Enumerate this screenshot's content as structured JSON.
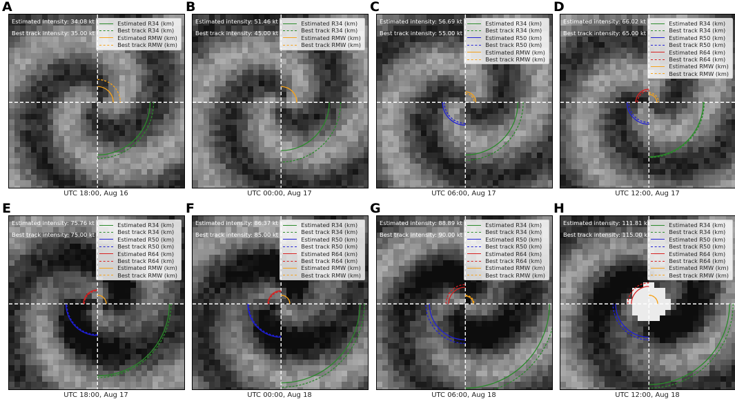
{
  "legend_colors": {
    "R34": "#2a8a2a",
    "R50": "#1f1fd6",
    "R64": "#d61f1f",
    "RMW": "#f5a21a"
  },
  "chart_data": [
    {
      "type": "image-panel",
      "letter": "A",
      "caption": "UTC 18:00, Aug 16",
      "estimated_intensity": "Estimated intensity: 34.08 kt",
      "best_track_intensity": "Best track intensity: 35.00 kt",
      "legend": [
        {
          "label": "Estimated R34 (km)",
          "key": "R34",
          "dashed": false
        },
        {
          "label": "Best track R34 (km)",
          "key": "R34",
          "dashed": true
        },
        {
          "label": "Estimated RMW (km)",
          "key": "RMW",
          "dashed": false
        },
        {
          "label": "Best track RMW (km)",
          "key": "RMW",
          "dashed": true
        }
      ],
      "radii": {
        "R34_est": 0.6,
        "R34_bt": 0.64,
        "RMW_est": 0.18,
        "RMW_bt": 0.26
      }
    },
    {
      "type": "image-panel",
      "letter": "B",
      "caption": "UTC 00:00, Aug 17",
      "estimated_intensity": "Estimated intensity: 51.46 kt",
      "best_track_intensity": "Best track intensity: 45.00 kt",
      "legend": [
        {
          "label": "Estimated R34 (km)",
          "key": "R34",
          "dashed": false
        },
        {
          "label": "Best track R34 (km)",
          "key": "R34",
          "dashed": true
        },
        {
          "label": "Estimated RMW (km)",
          "key": "RMW",
          "dashed": false
        },
        {
          "label": "Best track RMW (km)",
          "key": "RMW",
          "dashed": true
        }
      ],
      "radii": {
        "R34_est": 0.55,
        "R34_bt": 0.68,
        "RMW_est": 0.18,
        "RMW_bt": 0.18
      }
    },
    {
      "type": "image-panel",
      "letter": "C",
      "caption": "UTC 06:00, Aug 17",
      "estimated_intensity": "Estimated intensity: 56.69 kt",
      "best_track_intensity": "Best track intensity: 55.00 kt",
      "legend": [
        {
          "label": "Estimated R34 (km)",
          "key": "R34",
          "dashed": false
        },
        {
          "label": "Best track R34 (km)",
          "key": "R34",
          "dashed": true
        },
        {
          "label": "Estimated R50 (km)",
          "key": "R50",
          "dashed": false
        },
        {
          "label": "Best track R50 (km)",
          "key": "R50",
          "dashed": true
        },
        {
          "label": "Estimated RMW (km)",
          "key": "RMW",
          "dashed": false
        },
        {
          "label": "Best track RMW (km)",
          "key": "RMW",
          "dashed": true
        }
      ],
      "radii": {
        "R34_est": 0.6,
        "R34_bt": 0.66,
        "R50_est": 0.26,
        "R50_bt": 0.24,
        "RMW_est": 0.12,
        "RMW_bt": 0.1
      }
    },
    {
      "type": "image-panel",
      "letter": "D",
      "caption": "UTC 12:00, Aug 17",
      "estimated_intensity": "Estimated intensity: 66.02 kt",
      "best_track_intensity": "Best track intensity: 65.00 kt",
      "legend": [
        {
          "label": "Estimated R34 (km)",
          "key": "R34",
          "dashed": false
        },
        {
          "label": "Best track R34 (km)",
          "key": "R34",
          "dashed": true
        },
        {
          "label": "Estimated R50 (km)",
          "key": "R50",
          "dashed": false
        },
        {
          "label": "Best track R50 (km)",
          "key": "R50",
          "dashed": true
        },
        {
          "label": "Estimated R64 (km)",
          "key": "R64",
          "dashed": false
        },
        {
          "label": "Best track R64 (km)",
          "key": "R64",
          "dashed": true
        },
        {
          "label": "Estimated RMW (km)",
          "key": "RMW",
          "dashed": false
        },
        {
          "label": "Best track RMW (km)",
          "key": "RMW",
          "dashed": true
        }
      ],
      "radii": {
        "R34_est": 0.62,
        "R34_bt": 0.63,
        "R50_est": 0.25,
        "R50_bt": 0.23,
        "R64_est": 0.15,
        "R64_bt": 0.13,
        "RMW_est": 0.09,
        "RMW_bt": 0.11
      }
    },
    {
      "type": "image-panel",
      "letter": "E",
      "caption": "UTC 18:00, Aug 17",
      "estimated_intensity": "Estimated intensity: 75.76 kt",
      "best_track_intensity": "Best track intensity: 75.00 kt",
      "legend": [
        {
          "label": "Estimated R34 (km)",
          "key": "R34",
          "dashed": false
        },
        {
          "label": "Best track R34 (km)",
          "key": "R34",
          "dashed": true
        },
        {
          "label": "Estimated R50 (km)",
          "key": "R50",
          "dashed": false
        },
        {
          "label": "Best track R50 (km)",
          "key": "R50",
          "dashed": true
        },
        {
          "label": "Estimated R64 (km)",
          "key": "R64",
          "dashed": false
        },
        {
          "label": "Best track R64 (km)",
          "key": "R64",
          "dashed": true
        },
        {
          "label": "Estimated RMW (km)",
          "key": "RMW",
          "dashed": false
        },
        {
          "label": "Best track RMW (km)",
          "key": "RMW",
          "dashed": true
        }
      ],
      "radii": {
        "R34_est": 0.82,
        "R34_bt": 0.84,
        "R50_est": 0.36,
        "R50_bt": 0.35,
        "R64_est": 0.16,
        "R64_bt": 0.15,
        "RMW_est": 0.1,
        "RMW_bt": 0.1
      }
    },
    {
      "type": "image-panel",
      "letter": "F",
      "caption": "UTC 00:00, Aug 18",
      "estimated_intensity": "Estimated intensity: 86.37 kt",
      "best_track_intensity": "Best track intensity: 85.00 kt",
      "legend": [
        {
          "label": "Estimated R34 (km)",
          "key": "R34",
          "dashed": false
        },
        {
          "label": "Best track R34 (km)",
          "key": "R34",
          "dashed": true
        },
        {
          "label": "Estimated R50 (km)",
          "key": "R50",
          "dashed": false
        },
        {
          "label": "Best track R50 (km)",
          "key": "R50",
          "dashed": true
        },
        {
          "label": "Estimated R64 (km)",
          "key": "R64",
          "dashed": false
        },
        {
          "label": "Best track R64 (km)",
          "key": "R64",
          "dashed": true
        },
        {
          "label": "Estimated RMW (km)",
          "key": "RMW",
          "dashed": false
        },
        {
          "label": "Best track RMW (km)",
          "key": "RMW",
          "dashed": true
        }
      ],
      "radii": {
        "R34_est": 0.9,
        "R34_bt": 0.95,
        "R50_est": 0.38,
        "R50_bt": 0.37,
        "R64_est": 0.15,
        "R64_bt": 0.14,
        "RMW_est": 0.1,
        "RMW_bt": 0.1
      }
    },
    {
      "type": "image-panel",
      "letter": "G",
      "caption": "UTC 06:00, Aug 18",
      "estimated_intensity": "Estimated intensity: 88.89 kt",
      "best_track_intensity": "Best track intensity: 90.00 kt",
      "legend": [
        {
          "label": "Estimated R34 (km)",
          "key": "R34",
          "dashed": false
        },
        {
          "label": "Best track R34 (km)",
          "key": "R34",
          "dashed": true
        },
        {
          "label": "Estimated R50 (km)",
          "key": "R50",
          "dashed": false
        },
        {
          "label": "Best track R50 (km)",
          "key": "R50",
          "dashed": true
        },
        {
          "label": "Estimated R64 (km)",
          "key": "R64",
          "dashed": false
        },
        {
          "label": "Best track R64 (km)",
          "key": "R64",
          "dashed": true
        },
        {
          "label": "Estimated RMW (km)",
          "key": "RMW",
          "dashed": false
        },
        {
          "label": "Best track RMW (km)",
          "key": "RMW",
          "dashed": true
        }
      ],
      "radii": {
        "R34_est": 0.96,
        "R34_bt": 1.03,
        "R50_est": 0.41,
        "R50_bt": 0.45,
        "R64_est": 0.19,
        "R64_bt": 0.22,
        "RMW_est": 0.09,
        "RMW_bt": 0.1
      }
    },
    {
      "type": "image-panel",
      "letter": "H",
      "caption": "UTC 12:00, Aug 18",
      "estimated_intensity": "Estimated intensity: 111.81 kt",
      "best_track_intensity": "Best track intensity: 115.00 kt",
      "legend": [
        {
          "label": "Estimated R34 (km)",
          "key": "R34",
          "dashed": false
        },
        {
          "label": "Best track R34 (km)",
          "key": "R34",
          "dashed": true
        },
        {
          "label": "Estimated R50 (km)",
          "key": "R50",
          "dashed": false
        },
        {
          "label": "Best track R50 (km)",
          "key": "R50",
          "dashed": true
        },
        {
          "label": "Estimated R64 (km)",
          "key": "R64",
          "dashed": false
        },
        {
          "label": "Best track R64 (km)",
          "key": "R64",
          "dashed": true
        },
        {
          "label": "Estimated RMW (km)",
          "key": "RMW",
          "dashed": false
        },
        {
          "label": "Best track RMW (km)",
          "key": "RMW",
          "dashed": true
        }
      ],
      "radii": {
        "R34_est": 0.92,
        "R34_bt": 0.96,
        "R50_est": 0.38,
        "R50_bt": 0.41,
        "R64_est": 0.2,
        "R64_bt": 0.24,
        "RMW_est": 0.1,
        "RMW_bt": 0.1
      }
    }
  ]
}
